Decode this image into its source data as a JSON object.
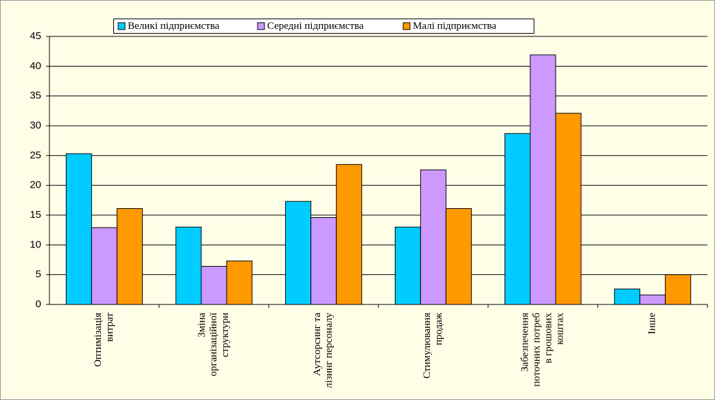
{
  "chart_data": {
    "type": "bar",
    "categories": [
      [
        "Оптимізація",
        "витрат"
      ],
      [
        "Зміна",
        "організаційної",
        "структури"
      ],
      [
        "Аутсорсинг та",
        "лізинг персоналу"
      ],
      [
        "Стимулювання",
        "продаж"
      ],
      [
        "Забезпечення",
        "поточних  потреб",
        "в грошових",
        "коштах"
      ],
      [
        "Інше"
      ]
    ],
    "series": [
      {
        "name": "Великі підприємства",
        "color": "#00ccff",
        "values": [
          25.3,
          13.0,
          17.3,
          13.0,
          28.7,
          2.6
        ]
      },
      {
        "name": "Середні підприємства",
        "color": "#cc99ff",
        "values": [
          12.9,
          6.4,
          14.6,
          22.6,
          41.9,
          1.6
        ]
      },
      {
        "name": "Малі підприємства",
        "color": "#ff9900",
        "values": [
          16.1,
          7.3,
          23.5,
          16.1,
          32.1,
          5.0
        ]
      }
    ],
    "ylim": [
      0,
      45
    ],
    "yticks": [
      0,
      5,
      10,
      15,
      20,
      25,
      30,
      35,
      40,
      45
    ],
    "grid": true,
    "legend": "top"
  }
}
